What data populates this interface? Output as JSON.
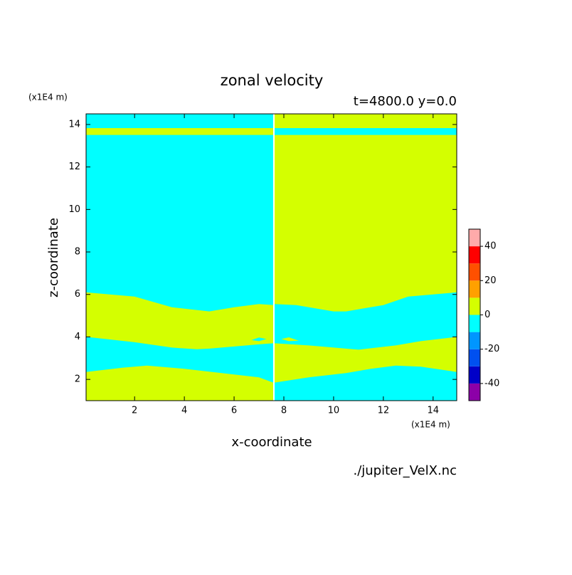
{
  "chart_data": {
    "type": "contour",
    "title": "zonal velocity",
    "subtitle": "t=4800.0 y=0.0",
    "x_label": "x-coordinate",
    "y_label": "z-coordinate",
    "x_unit": "(x1E4 m)",
    "y_unit": "(x1E4 m)",
    "source": "./jupiter_VelX.nc",
    "xlim": [
      0.05,
      14.95
    ],
    "xticks": [
      2,
      4,
      6,
      8,
      10,
      12,
      14
    ],
    "ylim": [
      1,
      14.5
    ],
    "yticks": [
      2,
      4,
      6,
      8,
      10,
      12,
      14
    ],
    "levels": [
      -50,
      -40,
      -30,
      -20,
      -10,
      0,
      10,
      20,
      30,
      40,
      50
    ],
    "colors": [
      "#8c00a8",
      "#0000c8",
      "#0050f0",
      "#0096ff",
      "#00ffff",
      "#d4ff00",
      "#ffa000",
      "#ff5000",
      "#ff0000",
      "#ffaaaa"
    ],
    "colorbar_ticks": [
      -40,
      -20,
      0,
      20,
      40
    ],
    "regions": [
      {
        "bin": 4,
        "x": [
          0.05,
          7.57,
          7.57,
          0.05
        ],
        "y": [
          1,
          1,
          14.5,
          14.5
        ]
      },
      {
        "bin": 5,
        "x": [
          7.63,
          14.95,
          14.95,
          7.63
        ],
        "y": [
          1,
          1,
          14.5,
          14.5
        ]
      },
      {
        "bin": 5,
        "x": [
          0.05,
          7.57,
          7.57,
          0.05
        ],
        "y": [
          13.51,
          13.51,
          13.83,
          13.83
        ]
      },
      {
        "bin": 4,
        "x": [
          7.63,
          14.95,
          14.95,
          7.63
        ],
        "y": [
          13.51,
          13.51,
          13.83,
          13.83
        ]
      },
      {
        "bin": 5,
        "x": [
          0.05,
          2,
          3.5,
          5,
          6,
          7,
          7.57,
          7.57,
          7,
          6,
          5,
          4.5,
          3.5,
          2,
          0.05
        ],
        "y": [
          6.1,
          5.9,
          5.4,
          5.2,
          5.4,
          5.55,
          5.5,
          3.7,
          3.65,
          3.55,
          3.45,
          3.42,
          3.5,
          3.75,
          4.0
        ]
      },
      {
        "bin": 5,
        "x": [
          0.05,
          1.5,
          2.5,
          4,
          5.5,
          7,
          7.57,
          7.57,
          0.05
        ],
        "y": [
          2.35,
          2.55,
          2.65,
          2.5,
          2.3,
          2.1,
          1.85,
          1,
          1
        ]
      },
      {
        "bin": 4,
        "x": [
          7.63,
          8.5,
          10,
          10.5,
          12,
          13,
          14.95,
          14.95,
          13.5,
          12.5,
          11,
          10.5,
          9,
          7.63
        ],
        "y": [
          5.55,
          5.5,
          5.2,
          5.2,
          5.5,
          5.9,
          6.1,
          4.0,
          3.8,
          3.6,
          3.4,
          3.45,
          3.6,
          3.7
        ]
      },
      {
        "bin": 4,
        "x": [
          7.63,
          9,
          10.5,
          11.5,
          12.5,
          13.5,
          14.95,
          14.95,
          7.63
        ],
        "y": [
          1.85,
          2.1,
          2.3,
          2.5,
          2.65,
          2.6,
          2.35,
          1,
          1
        ]
      },
      {
        "bin": 4,
        "x": [
          6.7,
          7.0,
          7.3,
          7.0
        ],
        "y": [
          3.85,
          3.97,
          3.9,
          3.8
        ]
      },
      {
        "bin": 5,
        "x": [
          7.9,
          8.2,
          8.6,
          8.2
        ],
        "y": [
          3.9,
          3.98,
          3.82,
          3.8
        ]
      }
    ]
  }
}
